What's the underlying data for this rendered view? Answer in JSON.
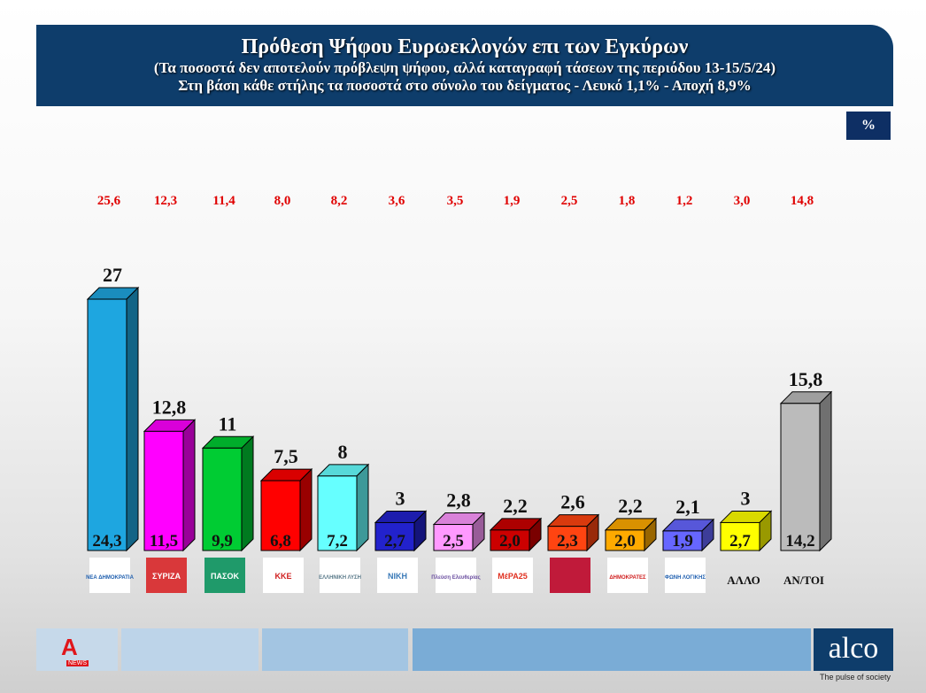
{
  "header": {
    "title": "Πρόθεση Ψήφου Ευρωεκλογών επι των Εγκύρων",
    "subtitle": "(Τα ποσοστά δεν αποτελούν πρόβλεψη ψήφου, αλλά καταγραφή τάσεων της περιόδου  13-15/5/24)",
    "note": "Στη βάση κάθε στήλης τα ποσοστά στο σύνολο του δείγματος - Λευκό 1,1% - Αποχή 8,9%"
  },
  "unit_badge": "%",
  "footer": {
    "brand": "alco",
    "tagline": "The pulse of society",
    "channel_logo": "A",
    "channel_logo_sub": "NEWS"
  },
  "chart_data": {
    "type": "bar",
    "title": "Πρόθεση Ψήφου Ευρωεκλογών επι των Εγκύρων",
    "categories": [
      "ΝΕΑ ΔΗΜΟΚΡΑΤΙΑ",
      "ΣΥΡΙΖΑ",
      "ΠΑΣΟΚ",
      "ΚΚΕ",
      "ΕΛΛΗΝΙΚΗ ΛΥΣΗ",
      "ΝΙΚΗ",
      "Πλεύση Ελευθερίας",
      "ΜέΡΑ25",
      "",
      "ΔΗΜΟΚΡΑΤΕΣ",
      "ΦΩΝΗ ΛΟΓΙΚΗΣ",
      "ΑΛΛΟ",
      "ΑΝ/ΤΟΙ"
    ],
    "category_label_is_text": [
      false,
      false,
      false,
      false,
      false,
      false,
      false,
      false,
      false,
      false,
      false,
      true,
      true
    ],
    "series": [
      {
        "values": [
          27,
          12.8,
          11,
          7.5,
          8,
          3,
          2.8,
          2.2,
          2.6,
          2.2,
          2.1,
          3,
          15.8
        ],
        "labels": [
          "27",
          "12,8",
          "11",
          "7,5",
          "8",
          "3",
          "2,8",
          "2,2",
          "2,6",
          "2,2",
          "2,1",
          "3",
          "15,8"
        ]
      },
      {
        "values": [
          24.3,
          11.5,
          9.9,
          6.8,
          7.2,
          2.7,
          2.5,
          2.0,
          2.3,
          2.0,
          1.9,
          2.7,
          14.2
        ],
        "labels": [
          "24,3",
          "11,5",
          "9,9",
          "6,8",
          "7,2",
          "2,7",
          "2,5",
          "2,0",
          "2,3",
          "2,0",
          "1,9",
          "2,7",
          "14,2"
        ]
      },
      {
        "values": [
          25.6,
          12.3,
          11.4,
          8.0,
          8.2,
          3.6,
          3.5,
          1.9,
          2.5,
          1.8,
          1.2,
          3.0,
          14.8
        ],
        "labels": [
          "25,6",
          "12,3",
          "11,4",
          "8,0",
          "8,2",
          "3,6",
          "3,5",
          "1,9",
          "2,5",
          "1,8",
          "1,2",
          "3,0",
          "14,8"
        ],
        "color": "#e00000"
      }
    ],
    "colors": [
      "#1ea6e0",
      "#ff00ff",
      "#00cc33",
      "#ff0000",
      "#66ffff",
      "#2222cc",
      "#ff99ff",
      "#cc0000",
      "#ff4411",
      "#ffaa00",
      "#6666ff",
      "#ffff00",
      "#bbbbbb"
    ],
    "logo_colors": [
      "#1f5fae",
      "#d9383a",
      "#1f9a6a",
      "#d01f1f",
      "#5a7a8a",
      "#3a7ab8",
      "#6b4fa0",
      "#e03020",
      "#c01a3a",
      "#d02020",
      "#2060b0",
      "",
      ""
    ],
    "ylim": [
      0,
      28
    ],
    "grid": false,
    "legend": "none"
  }
}
